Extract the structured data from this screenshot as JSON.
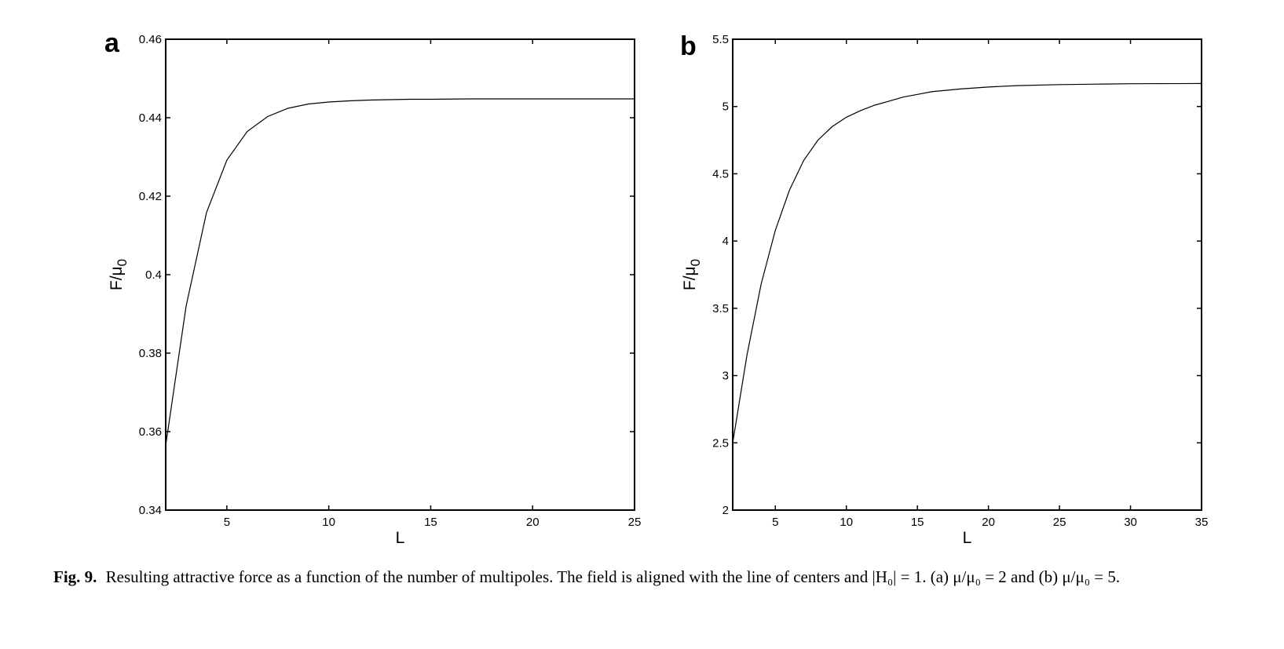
{
  "chart_data": [
    {
      "type": "line",
      "panel_label": "a",
      "xlabel": "L",
      "ylabel_main": "F/μ",
      "ylabel_sub": "0",
      "xlim": [
        2,
        25
      ],
      "ylim": [
        0.34,
        0.46
      ],
      "xticks": [
        5,
        10,
        15,
        20,
        25
      ],
      "yticks": [
        0.34,
        0.36,
        0.38,
        0.4,
        0.42,
        0.44,
        0.46
      ],
      "ytick_labels": [
        "0.34",
        "0.36",
        "0.38",
        "0.4",
        "0.42",
        "0.44",
        "0.46"
      ],
      "grid": false,
      "series": [
        {
          "x": [
            2,
            3,
            4,
            5,
            6,
            7,
            8,
            9,
            10,
            11,
            12,
            13,
            14,
            15,
            17,
            20,
            25
          ],
          "y": [
            0.3565,
            0.392,
            0.4158,
            0.4292,
            0.4365,
            0.4403,
            0.4424,
            0.4435,
            0.444,
            0.4443,
            0.4445,
            0.4446,
            0.4447,
            0.4447,
            0.4448,
            0.4448,
            0.4448
          ]
        }
      ]
    },
    {
      "type": "line",
      "panel_label": "b",
      "xlabel": "L",
      "ylabel_main": "F/μ",
      "ylabel_sub": "0",
      "xlim": [
        2,
        35
      ],
      "ylim": [
        2,
        5.5
      ],
      "xticks": [
        5,
        10,
        15,
        20,
        25,
        30,
        35
      ],
      "yticks": [
        2,
        2.5,
        3,
        3.5,
        4,
        4.5,
        5,
        5.5
      ],
      "ytick_labels": [
        "2",
        "2.5",
        "3",
        "3.5",
        "4",
        "4.5",
        "5",
        "5.5"
      ],
      "grid": false,
      "series": [
        {
          "x": [
            2,
            3,
            4,
            5,
            6,
            7,
            8,
            9,
            10,
            11,
            12,
            13,
            14,
            15,
            16,
            18,
            20,
            22,
            25,
            28,
            30,
            35
          ],
          "y": [
            2.5,
            3.15,
            3.68,
            4.08,
            4.38,
            4.6,
            4.75,
            4.85,
            4.92,
            4.97,
            5.01,
            5.04,
            5.07,
            5.09,
            5.11,
            5.13,
            5.145,
            5.155,
            5.163,
            5.167,
            5.169,
            5.171
          ]
        }
      ]
    }
  ],
  "caption": {
    "label": "Fig. 9.",
    "text": "Resulting attractive force as a function of the number of multipoles. The field is aligned with the line of centers and |H₀| = 1. (a) μ/μ₀ = 2 and (b) μ/μ₀ = 5."
  }
}
